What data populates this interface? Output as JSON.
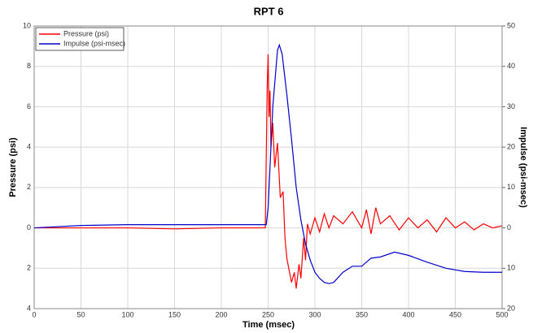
{
  "chart_data": {
    "type": "line",
    "title": "RPT 6",
    "x_label": "Time (msec)",
    "y_label": "Pressure (psi)",
    "y2_label": "Impulse (psi-msec)",
    "xlim": [
      0,
      500
    ],
    "xticks": [
      0,
      50,
      100,
      150,
      200,
      250,
      300,
      350,
      400,
      450,
      500
    ],
    "ylim": [
      -4,
      10
    ],
    "yticks": [
      {
        "value": -4,
        "label": "4"
      },
      {
        "value": -2,
        "label": "2"
      },
      0,
      2,
      4,
      6,
      8,
      10
    ],
    "y2lim": [
      -20,
      50
    ],
    "y2ticks": [
      {
        "value": -20,
        "label": "20"
      },
      {
        "value": -10,
        "label": "10"
      },
      0,
      10,
      20,
      30,
      40,
      50
    ],
    "grid": true,
    "legend": "upper-left",
    "series": [
      {
        "name": "Pressure (psi)",
        "color": "#ff0000",
        "x": [
          0,
          50,
          100,
          150,
          200,
          247,
          249,
          250,
          251,
          252,
          253,
          255,
          257,
          260,
          263,
          266,
          268,
          270,
          272,
          275,
          278,
          280,
          283,
          285,
          288,
          290,
          292,
          295,
          300,
          305,
          310,
          315,
          320,
          330,
          340,
          350,
          355,
          360,
          365,
          370,
          380,
          390,
          400,
          410,
          420,
          430,
          440,
          450,
          460,
          470,
          480,
          490,
          500
        ],
        "values": [
          0,
          0,
          0,
          -0.05,
          0,
          0,
          7,
          8.6,
          5.5,
          6.8,
          4,
          5.2,
          3,
          4.2,
          1.5,
          1.8,
          -0.5,
          -1.5,
          -2,
          -2.7,
          -2.2,
          -3,
          -1.8,
          -2.5,
          -0.5,
          -1.6,
          0.2,
          -0.3,
          0.5,
          -0.2,
          0.7,
          0,
          0.6,
          0.2,
          0.8,
          0,
          0.9,
          -0.3,
          1,
          0.2,
          0.6,
          -0.1,
          0.5,
          0,
          0.4,
          -0.2,
          0.5,
          0,
          0.3,
          -0.1,
          0.2,
          0,
          0.1
        ]
      },
      {
        "name": "Impulse (psi-msec)",
        "color": "#0000cc",
        "axis": "y2",
        "x": [
          0,
          50,
          100,
          150,
          200,
          248,
          250,
          255,
          260,
          262,
          265,
          270,
          275,
          280,
          285,
          290,
          295,
          300,
          305,
          310,
          315,
          320,
          330,
          340,
          350,
          360,
          370,
          385,
          400,
          420,
          440,
          460,
          480,
          500
        ],
        "values": [
          0,
          0.6,
          0.8,
          0.8,
          0.8,
          0.8,
          5,
          30,
          44,
          45.3,
          43,
          33,
          22,
          10,
          2,
          -4,
          -8,
          -11,
          -12.5,
          -13.5,
          -13.8,
          -13.5,
          -11,
          -9.5,
          -9.5,
          -7.5,
          -7.2,
          -6,
          -6.8,
          -8.5,
          -10,
          -10.8,
          -11,
          -11
        ]
      }
    ]
  }
}
